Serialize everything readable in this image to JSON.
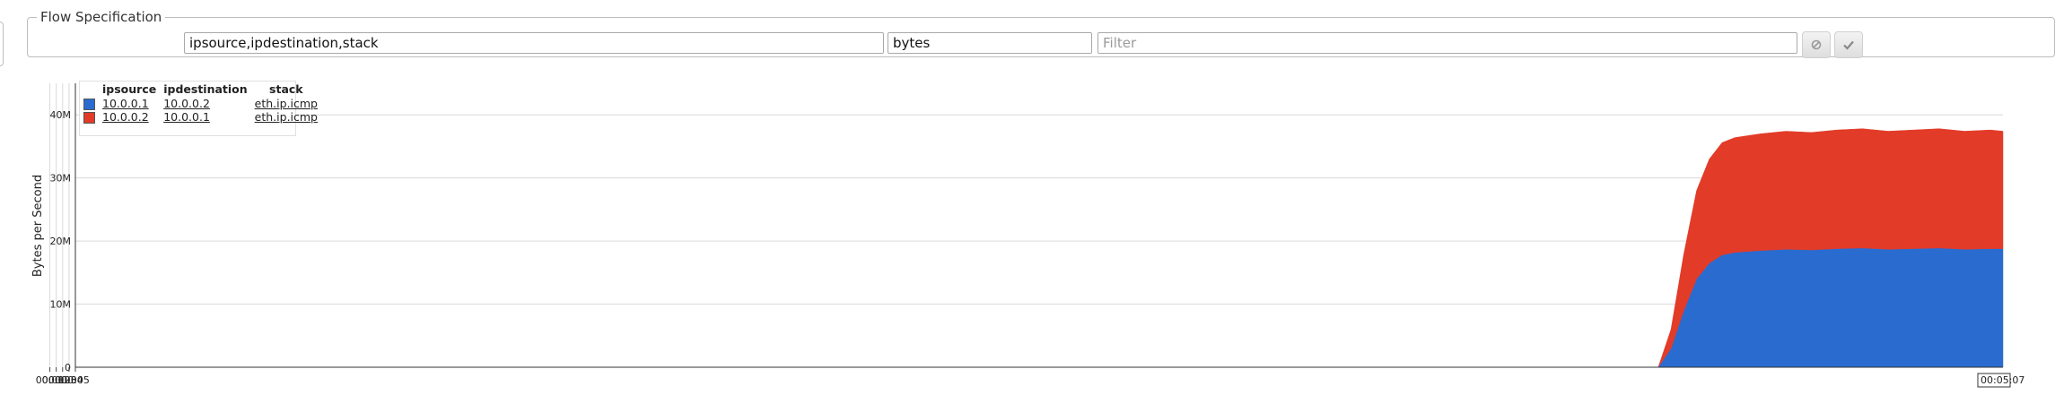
{
  "flow_spec": {
    "legend": "Flow Specification",
    "keys_value": "ipsource,ipdestination,stack",
    "value_value": "bytes",
    "filter_placeholder": "Filter"
  },
  "colors": {
    "series_1": "#2a6bcf",
    "series_2": "#e23b28"
  },
  "icons": {
    "clear": "clear-icon",
    "apply": "check-icon"
  },
  "legend": {
    "headers": [
      "ipsource",
      "ipdestination",
      "stack"
    ],
    "rows": [
      {
        "ipsource": "10.0.0.1",
        "ipdestination": "10.0.0.2",
        "stack": "eth.ip.icmp",
        "color": "#2a6bcf"
      },
      {
        "ipsource": "10.0.0.2",
        "ipdestination": "10.0.0.1",
        "stack": "eth.ip.icmp",
        "color": "#e23b28"
      }
    ]
  },
  "chart_data": {
    "type": "area",
    "stacked": true,
    "ylabel": "Bytes per Second",
    "xlabel": "",
    "ylim": [
      0,
      45
    ],
    "y_unit": "M",
    "yticks": [
      "0",
      "10M",
      "20M",
      "30M",
      "40M"
    ],
    "xlim": [
      "00:00:05",
      "00:05:07"
    ],
    "xticks": [
      "00:01",
      "00:02",
      "00:03",
      "00:04",
      "00:05"
    ],
    "x_end_label": "00:05:07",
    "grid": true,
    "legend_position": "top-left",
    "x": [
      "00:04:13",
      "00:04:15",
      "00:04:17",
      "00:04:19",
      "00:04:21",
      "00:04:23",
      "00:04:25",
      "00:04:29",
      "00:04:33",
      "00:04:37",
      "00:04:41",
      "00:04:45",
      "00:04:49",
      "00:04:53",
      "00:04:57",
      "00:05:01",
      "00:05:05",
      "00:05:07"
    ],
    "series": [
      {
        "values": [
          0,
          3,
          9,
          14,
          16.5,
          17.8,
          18.2,
          18.5,
          18.7,
          18.6,
          18.8,
          18.9,
          18.7,
          18.8,
          18.9,
          18.7,
          18.8,
          18.8
        ]
      },
      {
        "values": [
          0,
          3,
          9,
          14,
          16.5,
          17.8,
          18.2,
          18.5,
          18.7,
          18.6,
          18.8,
          18.9,
          18.7,
          18.8,
          18.9,
          18.7,
          18.8,
          18.6
        ]
      }
    ]
  }
}
